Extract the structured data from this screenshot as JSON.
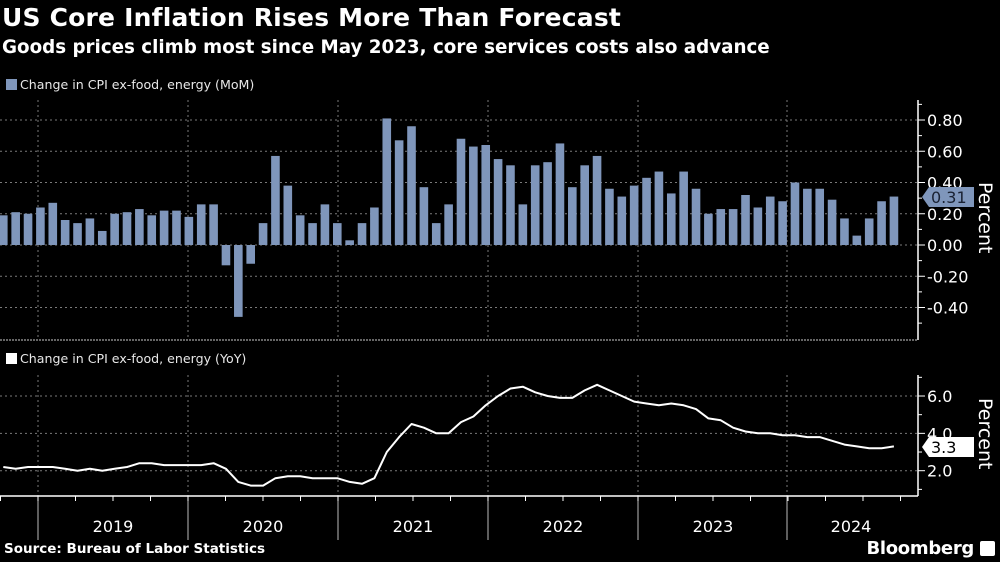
{
  "header": {
    "title": "US Core Inflation Rises More Than Forecast",
    "subtitle": "Goods prices climb most since May 2023, core services costs also advance"
  },
  "footer": {
    "source": "Source: Bureau of Labor Statistics",
    "brand": "Bloomberg"
  },
  "colors": {
    "background": "#000000",
    "bar": "#7f96bb",
    "line": "#ffffff",
    "grid": "#7a7a7a"
  },
  "chart_data": [
    {
      "type": "bar",
      "legend": "Change in CPI ex-food, energy (MoM)",
      "ylabel": "Percent",
      "ylim": [
        -0.6,
        0.93
      ],
      "yticks": [
        "0.80",
        "0.60",
        "0.40",
        "0.20",
        "0.00",
        "-0.20",
        "-0.40"
      ],
      "y_axis_side": "right",
      "grid": true,
      "last_value_label": "0.31",
      "x": [
        "2018-09",
        "2018-10",
        "2018-11",
        "2018-12",
        "2019-01",
        "2019-02",
        "2019-03",
        "2019-04",
        "2019-05",
        "2019-06",
        "2019-07",
        "2019-08",
        "2019-09",
        "2019-10",
        "2019-11",
        "2019-12",
        "2020-01",
        "2020-02",
        "2020-03",
        "2020-04",
        "2020-05",
        "2020-06",
        "2020-07",
        "2020-08",
        "2020-09",
        "2020-10",
        "2020-11",
        "2020-12",
        "2021-01",
        "2021-02",
        "2021-03",
        "2021-04",
        "2021-05",
        "2021-06",
        "2021-07",
        "2021-08",
        "2021-09",
        "2021-10",
        "2021-11",
        "2021-12",
        "2022-01",
        "2022-02",
        "2022-03",
        "2022-04",
        "2022-05",
        "2022-06",
        "2022-07",
        "2022-08",
        "2022-09",
        "2022-10",
        "2022-11",
        "2022-12",
        "2023-01",
        "2023-02",
        "2023-03",
        "2023-04",
        "2023-05",
        "2023-06",
        "2023-07",
        "2023-08",
        "2023-09",
        "2023-10",
        "2023-11",
        "2023-12",
        "2024-01",
        "2024-02",
        "2024-03",
        "2024-04",
        "2024-05",
        "2024-06",
        "2024-07",
        "2024-08",
        "2024-09"
      ],
      "values": [
        0.19,
        0.21,
        0.2,
        0.24,
        0.27,
        0.16,
        0.14,
        0.17,
        0.09,
        0.2,
        0.21,
        0.23,
        0.19,
        0.22,
        0.22,
        0.18,
        0.26,
        0.26,
        -0.13,
        -0.46,
        -0.12,
        0.14,
        0.57,
        0.38,
        0.19,
        0.14,
        0.26,
        0.14,
        0.03,
        0.14,
        0.24,
        0.81,
        0.67,
        0.76,
        0.37,
        0.14,
        0.26,
        0.68,
        0.63,
        0.64,
        0.55,
        0.51,
        0.26,
        0.51,
        0.53,
        0.65,
        0.37,
        0.51,
        0.57,
        0.36,
        0.31,
        0.38,
        0.43,
        0.47,
        0.33,
        0.47,
        0.36,
        0.2,
        0.23,
        0.23,
        0.32,
        0.24,
        0.31,
        0.28,
        0.4,
        0.36,
        0.36,
        0.29,
        0.17,
        0.06,
        0.17,
        0.28,
        0.31
      ]
    },
    {
      "type": "line",
      "legend": "Change in CPI ex-food, energy (YoY)",
      "ylabel": "Percent",
      "ylim": [
        0.7,
        7.2
      ],
      "yticks": [
        "6.0",
        "4.0",
        "2.0"
      ],
      "y_axis_side": "right",
      "grid": true,
      "last_value_label": "3.3",
      "xticks": [
        "2019",
        "2020",
        "2021",
        "2022",
        "2023",
        "2024"
      ],
      "values": [
        2.2,
        2.1,
        2.2,
        2.2,
        2.2,
        2.1,
        2.0,
        2.1,
        2.0,
        2.1,
        2.2,
        2.4,
        2.4,
        2.3,
        2.3,
        2.3,
        2.3,
        2.4,
        2.1,
        1.4,
        1.2,
        1.2,
        1.6,
        1.7,
        1.7,
        1.6,
        1.6,
        1.6,
        1.4,
        1.3,
        1.6,
        3.0,
        3.8,
        4.5,
        4.3,
        4.0,
        4.0,
        4.6,
        4.9,
        5.5,
        6.0,
        6.4,
        6.5,
        6.2,
        6.0,
        5.9,
        5.9,
        6.3,
        6.6,
        6.3,
        6.0,
        5.7,
        5.6,
        5.5,
        5.6,
        5.5,
        5.3,
        4.8,
        4.7,
        4.3,
        4.1,
        4.0,
        4.0,
        3.9,
        3.9,
        3.8,
        3.8,
        3.6,
        3.4,
        3.3,
        3.2,
        3.2,
        3.3
      ]
    }
  ]
}
